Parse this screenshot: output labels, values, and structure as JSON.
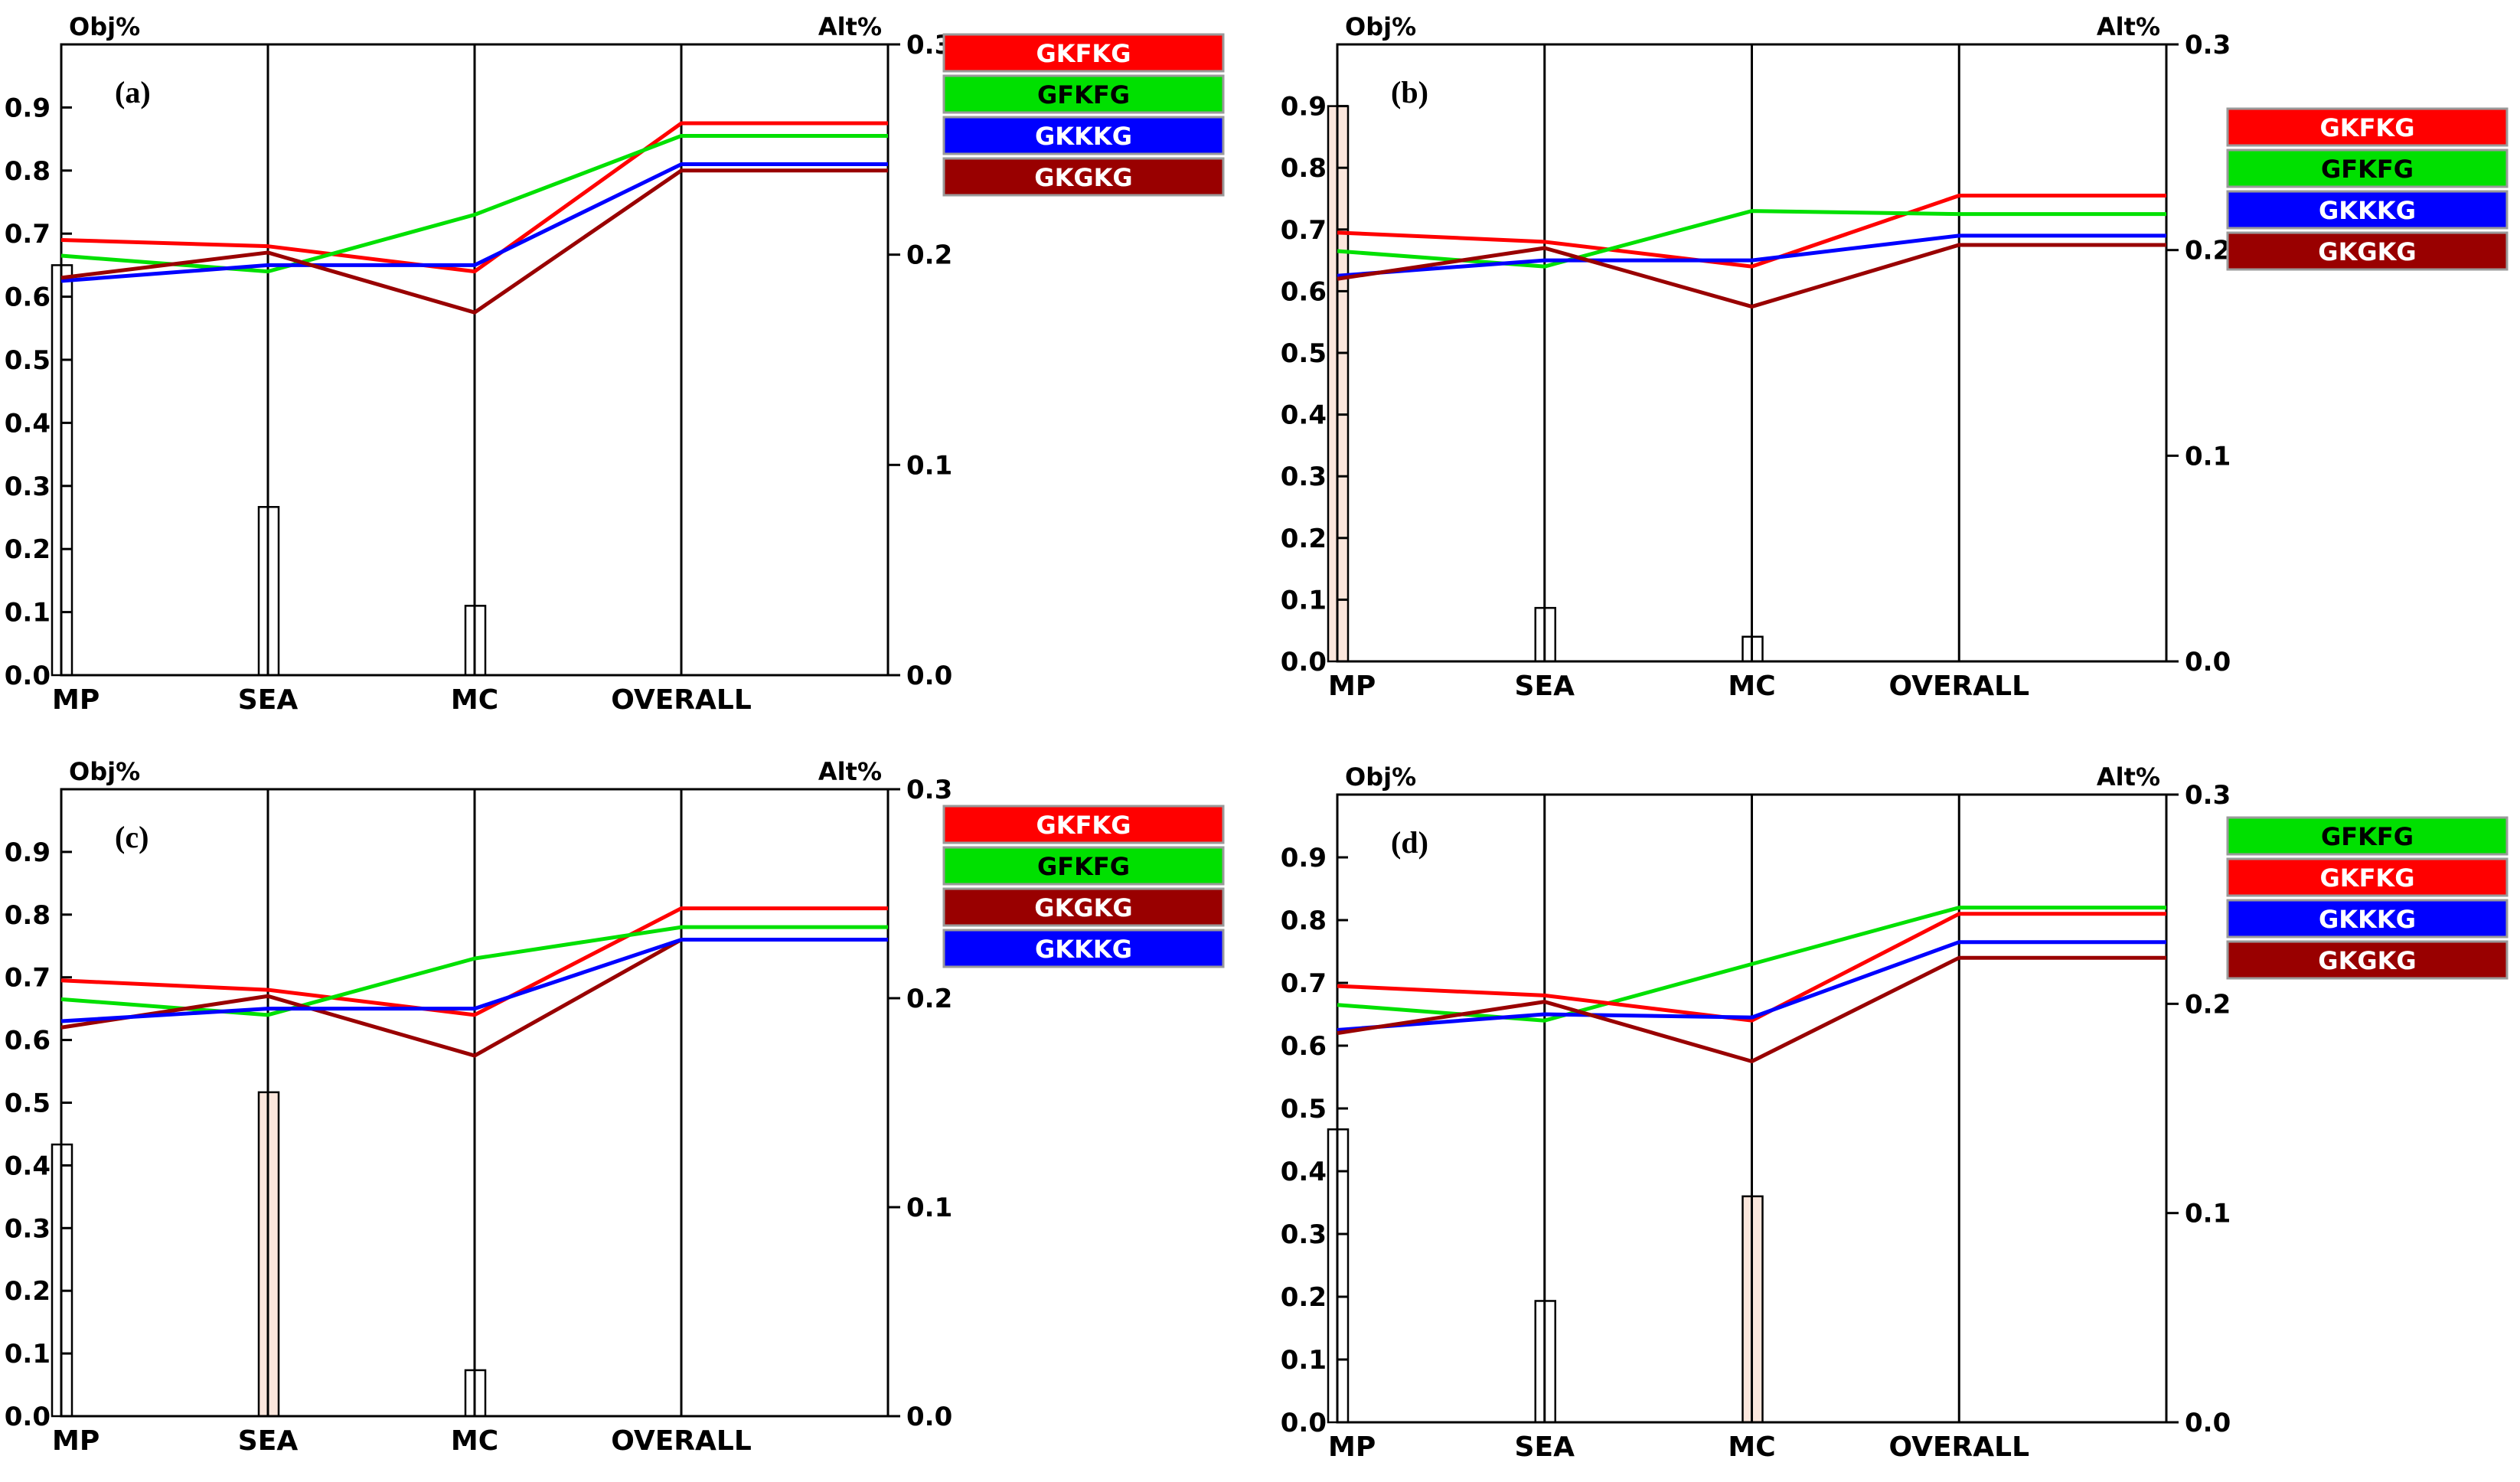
{
  "chart_data": [
    {
      "type": "line",
      "panel_label": "(a)",
      "left_axis_title": "Obj%",
      "right_axis_title": "Alt%",
      "left_ylim": [
        0,
        1
      ],
      "right_ylim": [
        0,
        0.3
      ],
      "left_ticks": [
        "0.0",
        "0.1",
        "0.2",
        "0.3",
        "0.4",
        "0.5",
        "0.6",
        "0.7",
        "0.8",
        "0.9"
      ],
      "right_ticks": [
        "0.0",
        "0.1",
        "0.2",
        "0.3"
      ],
      "categories": [
        "MP",
        "SEA",
        "MC",
        "OVERALL"
      ],
      "series": [
        {
          "name": "GKFKG",
          "color": "#ff0000",
          "values": [
            0.69,
            0.68,
            0.64,
            0.875
          ]
        },
        {
          "name": "GFKFG",
          "color": "#00e000",
          "values": [
            0.665,
            0.64,
            0.73,
            0.855
          ]
        },
        {
          "name": "GKKKG",
          "color": "#0000ff",
          "values": [
            0.625,
            0.65,
            0.65,
            0.81
          ]
        },
        {
          "name": "GKGKG",
          "color": "#990000",
          "values": [
            0.63,
            0.67,
            0.575,
            0.8
          ]
        }
      ],
      "legend": [
        "GKFKG",
        "GFKFG",
        "GKKKG",
        "GKGKG"
      ],
      "alt_bars": [
        {
          "category": "MP",
          "value": 0.195,
          "filled": false
        },
        {
          "category": "SEA",
          "value": 0.08,
          "filled": false
        },
        {
          "category": "MC",
          "value": 0.033,
          "filled": false
        }
      ]
    },
    {
      "type": "line",
      "panel_label": "(b)",
      "left_axis_title": "Obj%",
      "right_axis_title": "Alt%",
      "left_ylim": [
        0,
        1
      ],
      "right_ylim": [
        0,
        0.3
      ],
      "left_ticks": [
        "0.0",
        "0.1",
        "0.2",
        "0.3",
        "0.4",
        "0.5",
        "0.6",
        "0.7",
        "0.8",
        "0.9"
      ],
      "right_ticks": [
        "0.0",
        "0.1",
        "0.2",
        "0.3"
      ],
      "categories": [
        "MP",
        "SEA",
        "MC",
        "OVERALL"
      ],
      "series": [
        {
          "name": "GKFKG",
          "color": "#ff0000",
          "values": [
            0.695,
            0.68,
            0.64,
            0.755
          ]
        },
        {
          "name": "GFKFG",
          "color": "#00e000",
          "values": [
            0.665,
            0.64,
            0.73,
            0.725
          ]
        },
        {
          "name": "GKKKG",
          "color": "#0000ff",
          "values": [
            0.625,
            0.65,
            0.65,
            0.69
          ]
        },
        {
          "name": "GKGKG",
          "color": "#990000",
          "values": [
            0.62,
            0.67,
            0.575,
            0.675
          ]
        }
      ],
      "legend": [
        "GKFKG",
        "GFKFG",
        "GKKKG",
        "GKGKG"
      ],
      "alt_bars": [
        {
          "category": "MP",
          "value": 0.27,
          "filled": true
        },
        {
          "category": "SEA",
          "value": 0.026,
          "filled": false
        },
        {
          "category": "MC",
          "value": 0.012,
          "filled": false
        }
      ]
    },
    {
      "type": "line",
      "panel_label": "(c)",
      "left_axis_title": "Obj%",
      "right_axis_title": "Alt%",
      "left_ylim": [
        0,
        1
      ],
      "right_ylim": [
        0,
        0.3
      ],
      "left_ticks": [
        "0.0",
        "0.1",
        "0.2",
        "0.3",
        "0.4",
        "0.5",
        "0.6",
        "0.7",
        "0.8",
        "0.9"
      ],
      "right_ticks": [
        "0.0",
        "0.1",
        "0.2",
        "0.3"
      ],
      "categories": [
        "MP",
        "SEA",
        "MC",
        "OVERALL"
      ],
      "series": [
        {
          "name": "GKFKG",
          "color": "#ff0000",
          "values": [
            0.695,
            0.68,
            0.64,
            0.81
          ]
        },
        {
          "name": "GFKFG",
          "color": "#00e000",
          "values": [
            0.665,
            0.64,
            0.73,
            0.78
          ]
        },
        {
          "name": "GKGKG",
          "color": "#990000",
          "values": [
            0.62,
            0.67,
            0.575,
            0.76
          ]
        },
        {
          "name": "GKKKG",
          "color": "#0000ff",
          "values": [
            0.63,
            0.65,
            0.65,
            0.76
          ]
        }
      ],
      "legend": [
        "GKFKG",
        "GFKFG",
        "GKGKG",
        "GKKKG"
      ],
      "alt_bars": [
        {
          "category": "MP",
          "value": 0.13,
          "filled": false
        },
        {
          "category": "SEA",
          "value": 0.155,
          "filled": true
        },
        {
          "category": "MC",
          "value": 0.022,
          "filled": false
        }
      ]
    },
    {
      "type": "line",
      "panel_label": "(d)",
      "left_axis_title": "Obj%",
      "right_axis_title": "Alt%",
      "left_ylim": [
        0,
        1
      ],
      "right_ylim": [
        0,
        0.3
      ],
      "left_ticks": [
        "0.0",
        "0.1",
        "0.2",
        "0.3",
        "0.4",
        "0.5",
        "0.6",
        "0.7",
        "0.8",
        "0.9"
      ],
      "right_ticks": [
        "0.0",
        "0.1",
        "0.2",
        "0.3"
      ],
      "categories": [
        "MP",
        "SEA",
        "MC",
        "OVERALL"
      ],
      "series": [
        {
          "name": "GFKFG",
          "color": "#00e000",
          "values": [
            0.665,
            0.64,
            0.73,
            0.82
          ]
        },
        {
          "name": "GKFKG",
          "color": "#ff0000",
          "values": [
            0.695,
            0.68,
            0.64,
            0.81
          ]
        },
        {
          "name": "GKKKG",
          "color": "#0000ff",
          "values": [
            0.625,
            0.65,
            0.645,
            0.765
          ]
        },
        {
          "name": "GKGKG",
          "color": "#990000",
          "values": [
            0.62,
            0.67,
            0.575,
            0.74
          ]
        }
      ],
      "legend": [
        "GFKFG",
        "GKFKG",
        "GKKKG",
        "GKGKG"
      ],
      "alt_bars": [
        {
          "category": "MP",
          "value": 0.14,
          "filled": false
        },
        {
          "category": "SEA",
          "value": 0.058,
          "filled": false
        },
        {
          "category": "MC",
          "value": 0.108,
          "filled": true
        }
      ]
    }
  ]
}
